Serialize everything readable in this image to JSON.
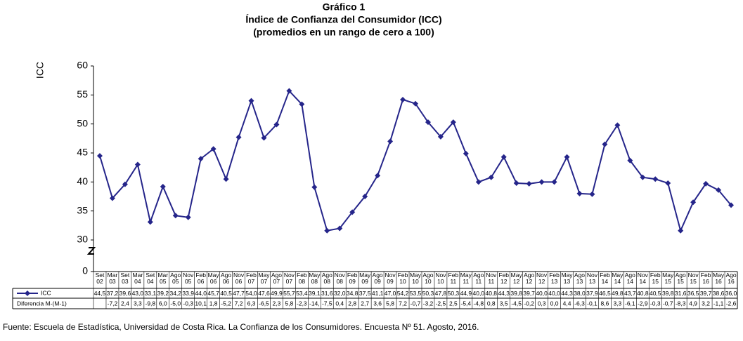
{
  "chart_data": {
    "type": "line",
    "title": "Gráfico 1",
    "subtitle": "Índice de Confianza del Consumidor (ICC)",
    "subtitle2": "(promedios en un rango de cero a 100)",
    "y_label": "ICC",
    "categories": [
      "Set 02",
      "Mar 03",
      "Set 03",
      "Mar 04",
      "Set 04",
      "Mar 05",
      "Ago 05",
      "Nov 05",
      "Feb 06",
      "May 06",
      "Ago 06",
      "Nov 06",
      "Feb 07",
      "May 07",
      "Ago 07",
      "Nov 07",
      "Feb 08",
      "May 08",
      "Ago 08",
      "Nov 08",
      "Feb 09",
      "May 09",
      "Ago 09",
      "Nov 09",
      "Feb 10",
      "May 10",
      "Ago 10",
      "Nov 10",
      "Feb 11",
      "May 11",
      "Ago 11",
      "Nov 11",
      "Feb 12",
      "May 12",
      "Ago 12",
      "Nov 12",
      "Feb 13",
      "May 13",
      "Ago 13",
      "Nov 13",
      "Feb 14",
      "May 14",
      "Ago 14",
      "Nov 14",
      "Feb 15",
      "May 15",
      "Ago 15",
      "Nov 15",
      "Feb 16",
      "May 16",
      "Ago 16"
    ],
    "series": [
      {
        "name": "ICC",
        "color": "#25258a",
        "values": [
          44.5,
          37.2,
          39.6,
          43.0,
          33.1,
          39.2,
          34.2,
          33.9,
          44.0,
          45.7,
          40.5,
          47.7,
          54.0,
          47.6,
          49.9,
          55.7,
          53.4,
          39.1,
          31.6,
          32.0,
          34.8,
          37.5,
          41.1,
          47.0,
          54.2,
          53.5,
          50.3,
          47.8,
          50.3,
          44.9,
          40.0,
          40.8,
          44.3,
          39.8,
          39.7,
          40.0,
          40.0,
          44.3,
          38.0,
          37.9,
          46.5,
          49.8,
          43.7,
          40.8,
          40.5,
          39.8,
          31.6,
          36.5,
          39.7,
          38.6,
          36.0
        ],
        "value_labels": [
          "44,5",
          "37,2",
          "39,6",
          "43,0",
          "33,1",
          "39,2",
          "34,2",
          "33,9",
          "44,0",
          "45,7",
          "40,5",
          "47,7",
          "54,0",
          "47,6",
          "49,9",
          "55,7",
          "53,4",
          "39,1",
          "31,6",
          "32,0",
          "34,8",
          "37,5",
          "41,1",
          "47,0",
          "54,2",
          "53,5",
          "50,3",
          "47,8",
          "50,3",
          "44,9",
          "40,0",
          "40,8",
          "44,3",
          "39,8",
          "39,7",
          "40,0",
          "40,0",
          "44,3",
          "38,0",
          "37,9",
          "46,5",
          "49,8",
          "43,7",
          "40,8",
          "40,5",
          "39,8",
          "31,6",
          "36,5",
          "39,7",
          "38,6",
          "36,0"
        ]
      }
    ],
    "table_row": {
      "name": "Diferencia M-(M-1)",
      "cells": [
        null,
        "-7,2",
        "2,4",
        "3,3",
        "-9,8",
        "6,0",
        "-5,0",
        "-0,3",
        "10,1",
        "1,8",
        "-5,2",
        "7,2",
        "6,3",
        "-6,5",
        "2,3",
        "5,8",
        "-2,3",
        "-14,",
        "-7,5",
        "0,4",
        "2,8",
        "2,7",
        "3,6",
        "5,8",
        "7,2",
        "-0,7",
        "-3,2",
        "-2,5",
        "2,5",
        "-5,4",
        "-4,8",
        "0,8",
        "3,5",
        "-4,5",
        "-0,2",
        "0,3",
        "0,0",
        "4,4",
        "-6,3",
        "-0,1",
        "8,6",
        "3,3",
        "-6,1",
        "-2,9",
        "-0,3",
        "-0,7",
        "-8,3",
        "4,9",
        "3,2",
        "-1,1",
        "-2,6"
      ]
    },
    "ylim": [
      0,
      60
    ],
    "yticks": [
      0,
      30,
      35,
      40,
      45,
      50,
      55,
      60
    ],
    "axis_break": true,
    "source": "Fuente: Escuela de Estadística, Universidad de Costa Rica. La Confianza de los Consumidores. Encuesta Nº 51. Agosto, 2016."
  }
}
